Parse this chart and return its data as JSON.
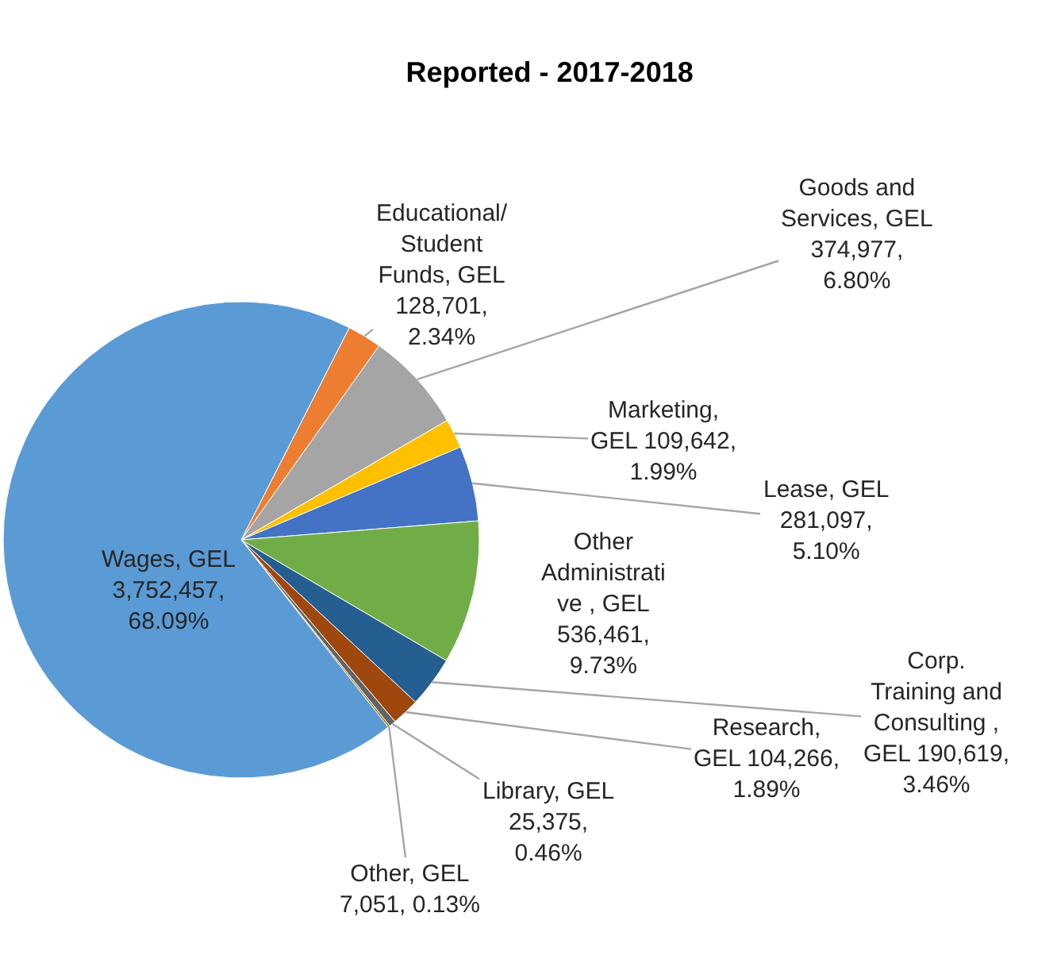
{
  "chart_data": {
    "type": "pie",
    "title": "Reported - 2017-2018",
    "categories": [
      "Educational/\nStudent\nFunds, GEL\n128,701,\n2.34%",
      "Goods and\nServices, GEL\n374,977,\n6.80%",
      "Marketing,\nGEL 109,642,\n1.99%",
      "Lease, GEL\n281,097,\n5.10%",
      "Other\nAdministrati\nve , GEL\n536,461,\n9.73%",
      "Corp.\nTraining and\nConsulting ,\nGEL 190,619,\n3.46%",
      "Research,\nGEL 104,266,\n1.89%",
      "Library, GEL\n25,375,\n0.46%",
      "Other, GEL\n7,051, 0.13%",
      "Wages, GEL\n3,752,457,\n68.09%"
    ],
    "values": [
      128701,
      374977,
      109642,
      281097,
      536461,
      190619,
      104266,
      25375,
      7051,
      3752457
    ],
    "colors": [
      "#ed7d31",
      "#a5a5a5",
      "#ffc000",
      "#4472c4",
      "#70ad47",
      "#255e91",
      "#9e480e",
      "#636363",
      "#997300",
      "#5b9bd5"
    ]
  }
}
